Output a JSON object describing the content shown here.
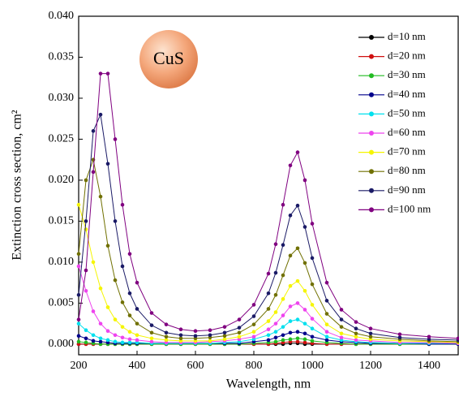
{
  "chart_data": {
    "type": "line",
    "xlabel": "Wavelength, nm",
    "ylabel": "Extinction cross section, cm²",
    "annotation": "CuS",
    "x": [
      200,
      225,
      250,
      275,
      300,
      325,
      350,
      375,
      400,
      450,
      500,
      550,
      600,
      650,
      700,
      750,
      800,
      850,
      875,
      900,
      925,
      950,
      975,
      1000,
      1050,
      1100,
      1150,
      1200,
      1300,
      1400,
      1500
    ],
    "xlim": [
      200,
      1500
    ],
    "xticks": [
      200,
      400,
      600,
      800,
      1000,
      1200,
      1400
    ],
    "ylim": [
      -0.0013,
      0.04
    ],
    "yticks": [
      {
        "value": 0,
        "label": "0.000"
      },
      {
        "value": 0.005,
        "label": "0.005"
      },
      {
        "value": 0.01,
        "label": "0.010"
      },
      {
        "value": 0.015,
        "label": "0.015"
      },
      {
        "value": 0.02,
        "label": "0.020"
      },
      {
        "value": 0.025,
        "label": "0.025"
      },
      {
        "value": 0.03,
        "label": "0.030"
      },
      {
        "value": 0.035,
        "label": "0.035"
      },
      {
        "value": 0.04,
        "label": "0.040"
      }
    ],
    "legend": "upper right",
    "series": [
      {
        "name": "d=10 nm",
        "color": "#000000",
        "values": [
          0,
          0,
          0,
          0,
          0,
          0,
          0,
          0,
          0,
          0,
          0,
          0,
          0,
          0,
          0,
          0,
          0,
          0,
          0,
          0,
          0.0001,
          0.0001,
          0,
          0,
          0,
          0,
          0,
          0,
          0,
          0,
          0
        ]
      },
      {
        "name": "d=20 nm",
        "color": "#d01010",
        "values": [
          0,
          0,
          0,
          0,
          0,
          0,
          0,
          0,
          0,
          0,
          0,
          0,
          0,
          0,
          0,
          0,
          0,
          0,
          0.0001,
          0.0002,
          0.0003,
          0.0003,
          0.0002,
          0.0001,
          0,
          0,
          0,
          0,
          0,
          0,
          0
        ]
      },
      {
        "name": "d=30 nm",
        "color": "#22bb22",
        "values": [
          0.0003,
          0.0002,
          0.0001,
          0,
          0,
          0,
          0,
          0,
          0,
          0,
          0,
          0,
          0,
          0,
          0,
          0,
          0.0001,
          0.0002,
          0.0003,
          0.0005,
          0.0006,
          0.0007,
          0.0006,
          0.0004,
          0.0002,
          0.0001,
          0,
          0,
          0,
          0,
          0
        ]
      },
      {
        "name": "d=40 nm",
        "color": "#00008b",
        "values": [
          0.001,
          0.0007,
          0.0004,
          0.0003,
          0.0002,
          0.0001,
          0.0001,
          0.0001,
          0.0001,
          0.0001,
          0.0001,
          0.0001,
          0.0001,
          0.0001,
          0.0001,
          0.0001,
          0.0003,
          0.0005,
          0.0008,
          0.0011,
          0.0014,
          0.0015,
          0.0013,
          0.0009,
          0.0005,
          0.0003,
          0.0002,
          0.0001,
          0.0001,
          0,
          0
        ]
      },
      {
        "name": "d=50 nm",
        "color": "#00e0ee",
        "values": [
          0.0025,
          0.0017,
          0.0011,
          0.0007,
          0.0005,
          0.0003,
          0.0002,
          0.0002,
          0.0002,
          0.0001,
          0.0001,
          0.0001,
          0.0001,
          0.0001,
          0.0002,
          0.0003,
          0.0006,
          0.0011,
          0.0015,
          0.0021,
          0.0028,
          0.003,
          0.0025,
          0.0019,
          0.0009,
          0.0005,
          0.0003,
          0.0002,
          0.0001,
          0.0001,
          0.0001
        ]
      },
      {
        "name": "d=60 nm",
        "color": "#ee44ee",
        "values": [
          0.0095,
          0.0065,
          0.004,
          0.0025,
          0.0016,
          0.0011,
          0.0008,
          0.0006,
          0.0005,
          0.0003,
          0.0002,
          0.0002,
          0.0002,
          0.0003,
          0.0004,
          0.0006,
          0.0009,
          0.0018,
          0.0025,
          0.0035,
          0.0046,
          0.005,
          0.0042,
          0.0031,
          0.0015,
          0.0008,
          0.0005,
          0.0004,
          0.0002,
          0.0002,
          0.0001
        ]
      },
      {
        "name": "d=70 nm",
        "color": "#f5f500",
        "values": [
          0.017,
          0.014,
          0.01,
          0.0068,
          0.0045,
          0.003,
          0.0021,
          0.0015,
          0.0011,
          0.0007,
          0.0005,
          0.0004,
          0.0004,
          0.0004,
          0.0006,
          0.0009,
          0.0015,
          0.0028,
          0.0039,
          0.0055,
          0.0071,
          0.0077,
          0.0065,
          0.0048,
          0.0024,
          0.0013,
          0.0009,
          0.0006,
          0.0004,
          0.0003,
          0.0002
        ]
      },
      {
        "name": "d=80 nm",
        "color": "#707000",
        "values": [
          0.011,
          0.02,
          0.0225,
          0.018,
          0.012,
          0.0078,
          0.0051,
          0.0035,
          0.0025,
          0.0014,
          0.0009,
          0.0007,
          0.0007,
          0.0008,
          0.001,
          0.0014,
          0.0024,
          0.0043,
          0.006,
          0.0084,
          0.0108,
          0.0117,
          0.0099,
          0.0073,
          0.0037,
          0.0021,
          0.0013,
          0.0009,
          0.0006,
          0.0004,
          0.0003
        ]
      },
      {
        "name": "d=90 nm",
        "color": "#1a1a66",
        "values": [
          0.006,
          0.015,
          0.026,
          0.028,
          0.022,
          0.015,
          0.0095,
          0.0062,
          0.0043,
          0.0023,
          0.0014,
          0.0011,
          0.001,
          0.0011,
          0.0014,
          0.002,
          0.0034,
          0.0062,
          0.0087,
          0.0121,
          0.0157,
          0.0169,
          0.0143,
          0.0105,
          0.0053,
          0.003,
          0.0019,
          0.0013,
          0.0008,
          0.0006,
          0.0005
        ]
      },
      {
        "name": "d=100 nm",
        "color": "#800080",
        "values": [
          0.003,
          0.009,
          0.021,
          0.033,
          0.033,
          0.025,
          0.017,
          0.011,
          0.0075,
          0.0038,
          0.0024,
          0.0018,
          0.0016,
          0.0017,
          0.0021,
          0.003,
          0.0048,
          0.0086,
          0.0122,
          0.017,
          0.0218,
          0.0234,
          0.02,
          0.0147,
          0.0075,
          0.0042,
          0.0027,
          0.0019,
          0.0012,
          0.0009,
          0.0007
        ]
      }
    ]
  }
}
